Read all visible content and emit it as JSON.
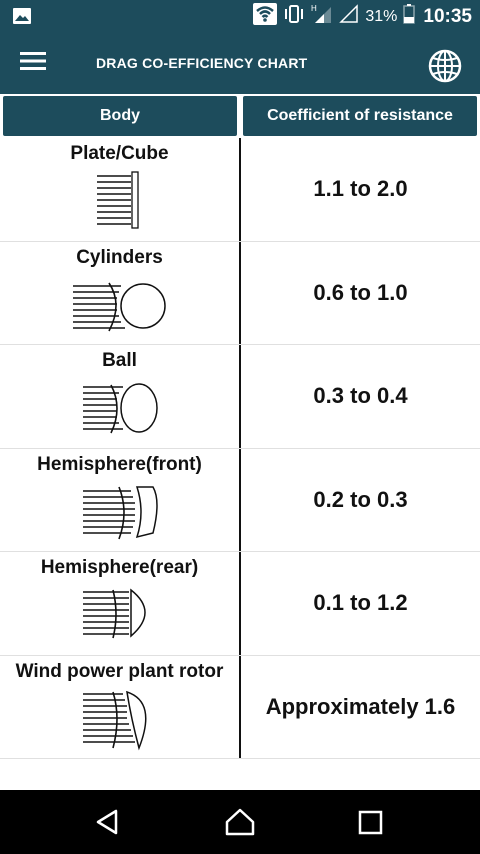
{
  "status_bar": {
    "battery_percent": "31%",
    "time": "10:35",
    "icons": [
      "gallery-icon",
      "wifi-icon",
      "vibrate-icon",
      "signal-icon",
      "signal-empty-icon",
      "battery-icon"
    ]
  },
  "app_bar": {
    "title": "DRAG CO-EFFICIENCY CHART",
    "menu_icon": "hamburger-menu-icon",
    "globe_icon": "globe-icon"
  },
  "table": {
    "headers": {
      "body": "Body",
      "coefficient": "Coefficient of resistance"
    },
    "rows": [
      {
        "body": "Plate/Cube",
        "coefficient": "1.1 to 2.0",
        "diagram": "plate-diagram-icon"
      },
      {
        "body": "Cylinders",
        "coefficient": "0.6 to 1.0",
        "diagram": "cylinder-diagram-icon"
      },
      {
        "body": "Ball",
        "coefficient": "0.3 to 0.4",
        "diagram": "ball-diagram-icon"
      },
      {
        "body": "Hemisphere(front)",
        "coefficient": "0.2 to 0.3",
        "diagram": "hemisphere-front-diagram-icon"
      },
      {
        "body": "Hemisphere(rear)",
        "coefficient": "0.1 to 1.2",
        "diagram": "hemisphere-rear-diagram-icon"
      },
      {
        "body": "Wind power plant rotor",
        "coefficient": "Approximately 1.6",
        "diagram": "rotor-diagram-icon"
      }
    ]
  },
  "nav_bar": {
    "icons": [
      "back-icon",
      "home-icon",
      "recents-icon"
    ]
  },
  "colors": {
    "primary": "#1d4c5c",
    "nav": "#000000",
    "divider": "#111111"
  }
}
